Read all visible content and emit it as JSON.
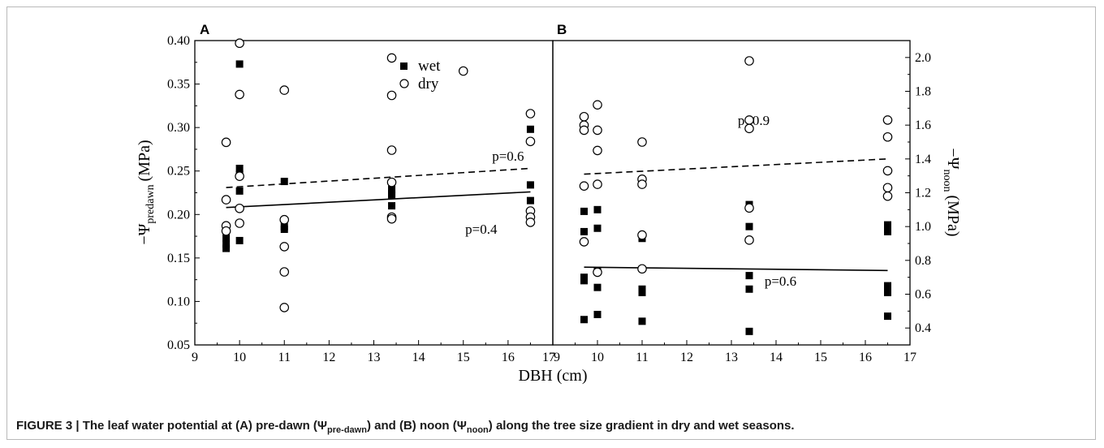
{
  "chart_data": [
    {
      "panel": "A",
      "type": "scatter",
      "ylabel_main": "−Ψ",
      "ylabel_sub": "predawn",
      "ylabel_unit": "(MPa)",
      "xlim": [
        9,
        17
      ],
      "ylim": [
        0.05,
        0.4
      ],
      "xticks": [
        9,
        10,
        11,
        12,
        13,
        14,
        15,
        16,
        17
      ],
      "yticks": [
        "0.05",
        "0.10",
        "0.15",
        "0.20",
        "0.25",
        "0.30",
        "0.35",
        "0.40"
      ],
      "legend": {
        "position": "top-right",
        "wet_label": "wet",
        "dry_label": "dry"
      },
      "series": [
        {
          "name": "wet",
          "marker": "filled-square",
          "points": [
            [
              9.7,
              0.161
            ],
            [
              9.7,
              0.166
            ],
            [
              9.7,
              0.173
            ],
            [
              10.0,
              0.373
            ],
            [
              10.0,
              0.253
            ],
            [
              10.0,
              0.246
            ],
            [
              10.0,
              0.227
            ],
            [
              10.0,
              0.17
            ],
            [
              11.0,
              0.238
            ],
            [
              11.0,
              0.186
            ],
            [
              11.0,
              0.183
            ],
            [
              13.4,
              0.229
            ],
            [
              13.4,
              0.224
            ],
            [
              13.4,
              0.222
            ],
            [
              13.4,
              0.21
            ],
            [
              16.5,
              0.298
            ],
            [
              16.5,
              0.234
            ],
            [
              16.5,
              0.216
            ],
            [
              16.5,
              0.2
            ]
          ]
        },
        {
          "name": "dry",
          "marker": "open-circle",
          "points": [
            [
              9.7,
              0.283
            ],
            [
              9.7,
              0.217
            ],
            [
              9.7,
              0.187
            ],
            [
              9.7,
              0.181
            ],
            [
              10.0,
              0.397
            ],
            [
              10.0,
              0.338
            ],
            [
              10.0,
              0.244
            ],
            [
              10.0,
              0.207
            ],
            [
              10.0,
              0.19
            ],
            [
              11.0,
              0.343
            ],
            [
              11.0,
              0.194
            ],
            [
              11.0,
              0.163
            ],
            [
              11.0,
              0.134
            ],
            [
              11.0,
              0.093
            ],
            [
              13.4,
              0.38
            ],
            [
              13.4,
              0.337
            ],
            [
              13.4,
              0.274
            ],
            [
              13.4,
              0.237
            ],
            [
              13.4,
              0.197
            ],
            [
              13.4,
              0.195
            ],
            [
              15.0,
              0.365
            ],
            [
              16.5,
              0.316
            ],
            [
              16.5,
              0.284
            ],
            [
              16.5,
              0.204
            ],
            [
              16.5,
              0.197
            ],
            [
              16.5,
              0.191
            ]
          ]
        }
      ],
      "fit_lines": [
        {
          "series": "dry",
          "style": "dashed",
          "x": [
            9.7,
            16.5
          ],
          "y": [
            0.231,
            0.253
          ],
          "label": "p=0.6",
          "label_at": [
            16.0,
            0.262
          ]
        },
        {
          "series": "wet",
          "style": "solid",
          "x": [
            9.7,
            16.5
          ],
          "y": [
            0.208,
            0.226
          ],
          "label": "p=0.4",
          "label_at": [
            15.4,
            0.178
          ]
        }
      ]
    },
    {
      "panel": "B",
      "type": "scatter",
      "ylabel_main": "−Ψ",
      "ylabel_sub": "noon",
      "ylabel_unit": "(MPa)",
      "xlim": [
        9,
        17
      ],
      "ylim": [
        0.3,
        2.1
      ],
      "xticks": [
        9,
        10,
        11,
        12,
        13,
        14,
        15,
        16,
        17
      ],
      "yticks": [
        "0.4",
        "0.6",
        "0.8",
        "1.0",
        "1.2",
        "1.4",
        "1.6",
        "1.8",
        "2.0"
      ],
      "series": [
        {
          "name": "wet",
          "marker": "filled-square",
          "points": [
            [
              9.7,
              1.09
            ],
            [
              9.7,
              0.97
            ],
            [
              9.7,
              0.7
            ],
            [
              9.7,
              0.68
            ],
            [
              9.7,
              0.45
            ],
            [
              10.0,
              1.1
            ],
            [
              10.0,
              0.99
            ],
            [
              10.0,
              0.74
            ],
            [
              10.0,
              0.64
            ],
            [
              10.0,
              0.48
            ],
            [
              11.0,
              0.93
            ],
            [
              11.0,
              0.63
            ],
            [
              11.0,
              0.61
            ],
            [
              11.0,
              0.44
            ],
            [
              13.4,
              1.13
            ],
            [
              13.4,
              1.0
            ],
            [
              13.4,
              0.71
            ],
            [
              13.4,
              0.63
            ],
            [
              13.4,
              0.38
            ],
            [
              16.5,
              1.01
            ],
            [
              16.5,
              0.97
            ],
            [
              16.5,
              0.65
            ],
            [
              16.5,
              0.61
            ],
            [
              16.5,
              0.47
            ]
          ]
        },
        {
          "name": "dry",
          "marker": "open-circle",
          "points": [
            [
              9.7,
              1.65
            ],
            [
              9.7,
              1.6
            ],
            [
              9.7,
              1.57
            ],
            [
              9.7,
              1.24
            ],
            [
              9.7,
              0.91
            ],
            [
              10.0,
              1.72
            ],
            [
              10.0,
              1.57
            ],
            [
              10.0,
              1.45
            ],
            [
              10.0,
              1.25
            ],
            [
              10.0,
              0.73
            ],
            [
              11.0,
              1.5
            ],
            [
              11.0,
              1.28
            ],
            [
              11.0,
              1.25
            ],
            [
              11.0,
              0.95
            ],
            [
              11.0,
              0.75
            ],
            [
              13.4,
              1.98
            ],
            [
              13.4,
              1.63
            ],
            [
              13.4,
              1.58
            ],
            [
              13.4,
              1.11
            ],
            [
              13.4,
              0.92
            ],
            [
              16.5,
              1.63
            ],
            [
              16.5,
              1.53
            ],
            [
              16.5,
              1.33
            ],
            [
              16.5,
              1.23
            ],
            [
              16.5,
              1.18
            ]
          ]
        }
      ],
      "fit_lines": [
        {
          "series": "dry",
          "style": "dashed",
          "x": [
            9.7,
            16.5
          ],
          "y": [
            1.31,
            1.4
          ],
          "label": "p=0.9",
          "label_at": [
            13.5,
            1.6
          ]
        },
        {
          "series": "wet",
          "style": "solid",
          "x": [
            9.7,
            16.5
          ],
          "y": [
            0.76,
            0.74
          ],
          "label": "p=0.6",
          "label_at": [
            14.1,
            0.65
          ]
        }
      ]
    }
  ],
  "xlabel": "DBH (cm)",
  "caption": {
    "prefix": "FIGURE 3 | The leaf water potential at (A) pre-dawn (Ψ",
    "sub1": "pre-dawn",
    "mid": ") and (B) noon (Ψ",
    "sub2": "noon",
    "suffix": ") along the tree size gradient in dry and wet seasons."
  }
}
